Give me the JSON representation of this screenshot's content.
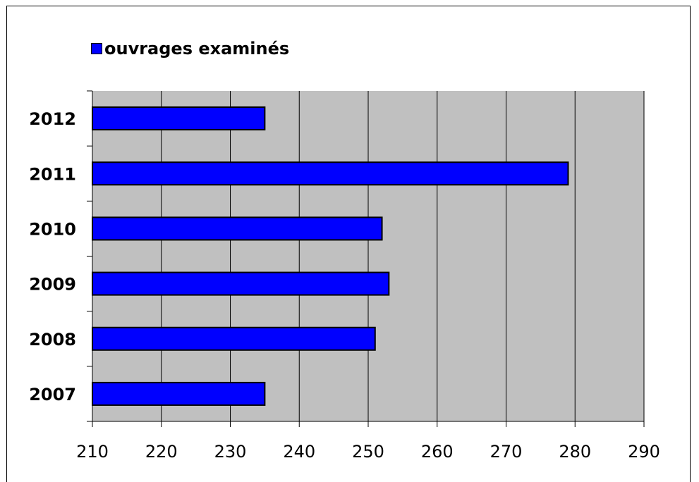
{
  "chart_data": {
    "type": "bar",
    "orientation": "horizontal",
    "categories": [
      "2007",
      "2008",
      "2009",
      "2010",
      "2011",
      "2012"
    ],
    "series": [
      {
        "name": "ouvrages examinés",
        "values": [
          235,
          251,
          253,
          252,
          279,
          235
        ]
      }
    ],
    "xlim": [
      210,
      290
    ],
    "xticks": [
      210,
      220,
      230,
      240,
      250,
      260,
      270,
      280,
      290
    ],
    "grid": "vertical",
    "legend": "top-left",
    "colors": {
      "bar": "#0000ff",
      "plot_background": "#c0c0c0",
      "gridline": "#000000"
    }
  }
}
